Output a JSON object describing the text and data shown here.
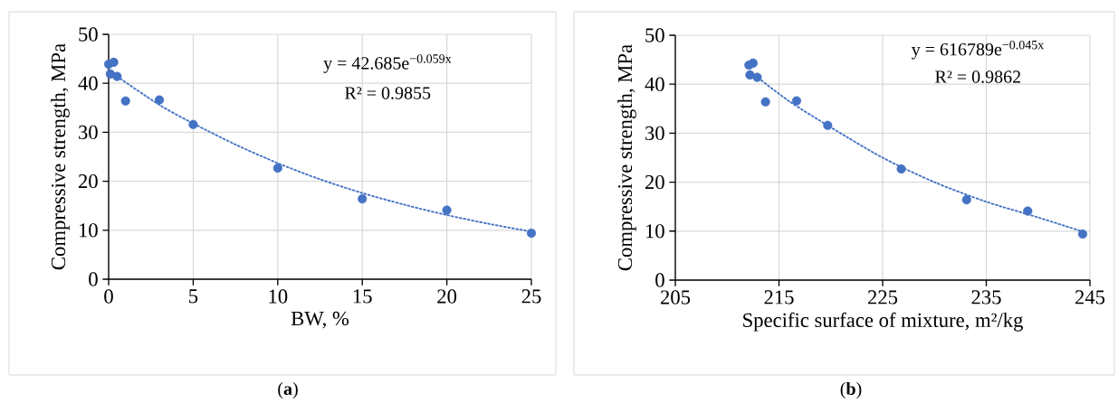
{
  "chart_data": [
    {
      "type": "scatter",
      "xlabel": "BW, %",
      "ylabel": "Compressive strength, MPa",
      "xlim": [
        0,
        25
      ],
      "xticks": [
        0,
        5,
        10,
        15,
        20,
        25
      ],
      "ylim": [
        0,
        50
      ],
      "yticks": [
        0,
        10,
        20,
        30,
        40,
        50
      ],
      "grid": true,
      "annotations": [
        "y = 42.685e$^{−0.059x}$",
        "R² = 0.9855",
        "(**a**)"
      ],
      "series": [
        {
          "marker": "circle",
          "color": "#4472c4",
          "x": [
            0,
            0.1,
            0.3,
            0.5,
            1,
            3,
            5,
            10,
            15,
            20,
            25
          ],
          "values": [
            43.9,
            41.9,
            44.3,
            41.4,
            36.4,
            36.6,
            31.6,
            22.7,
            16.4,
            14.1,
            9.4
          ]
        },
        {
          "type": "line",
          "marker": "none",
          "color": "#4472c4",
          "line_style": "dotted",
          "x": [
            0.5,
            3,
            5,
            7.5,
            10,
            12.5,
            15,
            17.5,
            20,
            22.5,
            25
          ],
          "values": [
            41.4,
            35.6,
            31.8,
            27.5,
            23.7,
            20.4,
            17.6,
            15.2,
            13.1,
            11.3,
            9.7
          ]
        }
      ]
    },
    {
      "type": "scatter",
      "xlabel": "Specific surface of mixture, m²/kg",
      "ylabel": "Compressive strength, MPa",
      "xlim": [
        205,
        245
      ],
      "xticks": [
        205,
        215,
        225,
        235,
        245
      ],
      "ylim": [
        0,
        50
      ],
      "yticks": [
        0,
        10,
        20,
        30,
        40,
        50
      ],
      "grid": true,
      "annotations": [
        "y = 616789e$^{−0.045x}$",
        "R² = 0.9862",
        "(**b**)"
      ],
      "series": [
        {
          "marker": "circle",
          "color": "#4472c4",
          "x": [
            212.1,
            212.2,
            212.5,
            212.9,
            213.7,
            216.7,
            219.7,
            226.8,
            233.1,
            239.0,
            244.3
          ],
          "values": [
            43.9,
            41.9,
            44.3,
            41.4,
            36.4,
            36.6,
            31.6,
            22.7,
            16.4,
            14.1,
            9.4
          ]
        },
        {
          "type": "line",
          "marker": "none",
          "color": "#4472c4",
          "line_style": "dotted",
          "x": [
            213,
            216,
            220,
            225,
            230,
            235,
            240,
            244.3
          ],
          "values": [
            41.3,
            36.5,
            31.2,
            25.0,
            20.0,
            16.0,
            12.8,
            9.9
          ]
        }
      ]
    }
  ]
}
